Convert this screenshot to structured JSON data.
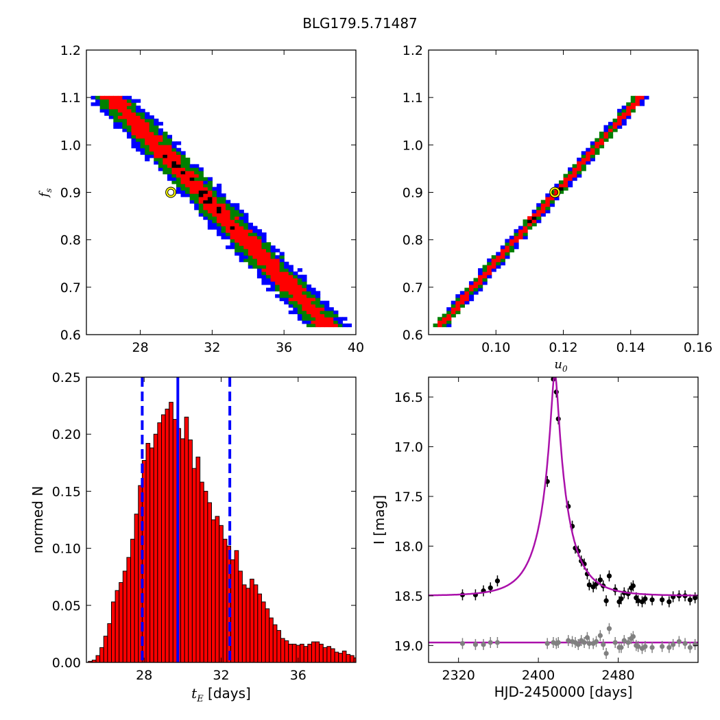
{
  "figure": {
    "title": "BLG179.5.71487"
  },
  "chart_data": [
    {
      "type": "heatmap",
      "panel": "top-left",
      "xlabel": "",
      "ylabel": "f_s",
      "ylabel_display": "f",
      "ylabel_sub": "s",
      "xlim": [
        25,
        40
      ],
      "ylim": [
        0.6,
        1.2
      ],
      "xticks": [
        28,
        32,
        36,
        40
      ],
      "yticks": [
        0.6,
        0.7,
        0.8,
        0.9,
        1.0,
        1.1,
        1.2
      ],
      "ytick_labels": [
        "0.6",
        "0.7",
        "0.8",
        "0.9",
        "1.0",
        "1.1",
        "1.2"
      ],
      "colors": {
        "outer": "#0000ff",
        "middle": "#008000",
        "inner": "#ff0000",
        "core": "#000000"
      },
      "best_fit": {
        "x": 29.7,
        "y": 0.9,
        "marker_color": "#ffff00"
      },
      "band": {
        "fs_range": [
          0.62,
          1.1
        ],
        "x_at_fs_1_1": 26.4,
        "x_at_fs_0_62": 38.4
      }
    },
    {
      "type": "heatmap",
      "panel": "top-right",
      "xlabel": "u_0",
      "xlabel_display": "u",
      "xlabel_sub": "0",
      "ylabel": "",
      "xlim": [
        0.08,
        0.16
      ],
      "ylim": [
        0.6,
        1.2
      ],
      "xticks": [
        0.1,
        0.12,
        0.14,
        0.16
      ],
      "xtick_labels": [
        "0.10",
        "0.12",
        "0.14",
        "0.16"
      ],
      "yticks": [
        0.6,
        0.7,
        0.8,
        0.9,
        1.0,
        1.1,
        1.2
      ],
      "ytick_labels": [
        "0.6",
        "0.7",
        "0.8",
        "0.9",
        "1.0",
        "1.1",
        "1.2"
      ],
      "colors": {
        "outer": "#0000ff",
        "middle": "#008000",
        "inner": "#ff0000",
        "core": "#000000"
      },
      "best_fit": {
        "x": 0.1175,
        "y": 0.9,
        "marker_color": "#ffff00"
      },
      "band": {
        "fs_range": [
          0.62,
          1.1
        ],
        "x_at_fs_0_62": 0.0835,
        "x_at_fs_1_1": 0.1425
      }
    },
    {
      "type": "bar",
      "panel": "bottom-left",
      "xlabel": "t_E [days]",
      "xlabel_italic": "t",
      "xlabel_sub": "E",
      "xlabel_rest": " [days]",
      "ylabel": "normed N",
      "xlim": [
        25,
        39
      ],
      "ylim": [
        0,
        0.25
      ],
      "xticks": [
        28,
        32,
        36
      ],
      "yticks": [
        0,
        0.05,
        0.1,
        0.15,
        0.2,
        0.25
      ],
      "ytick_labels": [
        "0.00",
        "0.05",
        "0.10",
        "0.15",
        "0.20",
        "0.25"
      ],
      "bar_color": "#ff0000",
      "bin_start": 25.1,
      "bin_width": 0.2,
      "values": [
        0.001,
        0.002,
        0.006,
        0.013,
        0.023,
        0.034,
        0.053,
        0.063,
        0.07,
        0.08,
        0.092,
        0.108,
        0.13,
        0.155,
        0.177,
        0.192,
        0.188,
        0.2,
        0.21,
        0.217,
        0.222,
        0.228,
        0.213,
        0.205,
        0.196,
        0.215,
        0.195,
        0.17,
        0.18,
        0.158,
        0.15,
        0.14,
        0.125,
        0.128,
        0.12,
        0.108,
        0.102,
        0.09,
        0.098,
        0.08,
        0.068,
        0.065,
        0.073,
        0.068,
        0.06,
        0.053,
        0.047,
        0.039,
        0.033,
        0.028,
        0.021,
        0.019,
        0.016,
        0.016,
        0.015,
        0.016,
        0.014,
        0.016,
        0.018,
        0.018,
        0.016,
        0.013,
        0.014,
        0.012,
        0.009,
        0.008,
        0.01,
        0.007,
        0.006,
        0.004,
        0.005,
        0.003,
        0.002
      ],
      "vlines": [
        {
          "x": 27.9,
          "style": "dashed",
          "color": "#0000ff"
        },
        {
          "x": 29.75,
          "style": "solid",
          "color": "#0000ff"
        },
        {
          "x": 32.45,
          "style": "dashed",
          "color": "#0000ff"
        }
      ]
    },
    {
      "type": "scatter",
      "panel": "bottom-right",
      "xlabel": "HJD-2450000 [days]",
      "ylabel": "I [mag]",
      "xlim": [
        2290,
        2560
      ],
      "ylim": [
        19.17,
        16.3
      ],
      "y_inverted": true,
      "xticks": [
        2320,
        2400,
        2480
      ],
      "yticks": [
        16.5,
        17.0,
        17.5,
        18.0,
        18.5,
        19.0
      ],
      "ytick_labels": [
        "16.5",
        "17.0",
        "17.5",
        "18.0",
        "18.5",
        "19.0"
      ],
      "model": {
        "color": "#aa10aa",
        "baseline": 18.5,
        "t0": 2416.5,
        "tE": 29.7,
        "u0": 0.1175,
        "fs": 0.9,
        "residual_baseline": 18.97
      },
      "series": [
        {
          "color": "#000000",
          "points": [
            [
              2324,
              18.49
            ],
            [
              2337,
              18.49
            ],
            [
              2345,
              18.45
            ],
            [
              2352,
              18.42
            ],
            [
              2359,
              18.35
            ],
            [
              2409,
              17.35
            ],
            [
              2415,
              16.32
            ],
            [
              2418,
              16.45
            ],
            [
              2420,
              16.72
            ],
            [
              2430,
              17.6
            ],
            [
              2434,
              17.8
            ],
            [
              2437,
              18.02
            ],
            [
              2440,
              18.05
            ],
            [
              2443,
              18.15
            ],
            [
              2446,
              18.18
            ],
            [
              2449,
              18.28
            ],
            [
              2451,
              18.39
            ],
            [
              2455,
              18.41
            ],
            [
              2458,
              18.38
            ],
            [
              2462,
              18.34
            ],
            [
              2465,
              18.4
            ],
            [
              2468,
              18.55
            ],
            [
              2471,
              18.3
            ],
            [
              2477,
              18.44
            ],
            [
              2481,
              18.56
            ],
            [
              2483,
              18.53
            ],
            [
              2486,
              18.47
            ],
            [
              2490,
              18.48
            ],
            [
              2493,
              18.42
            ],
            [
              2495,
              18.4
            ],
            [
              2498,
              18.52
            ],
            [
              2500,
              18.55
            ],
            [
              2504,
              18.56
            ],
            [
              2507,
              18.53
            ],
            [
              2514,
              18.54
            ],
            [
              2524,
              18.54
            ],
            [
              2531,
              18.56
            ],
            [
              2535,
              18.51
            ],
            [
              2541,
              18.5
            ],
            [
              2547,
              18.5
            ],
            [
              2552,
              18.54
            ],
            [
              2557,
              18.52
            ]
          ]
        },
        {
          "color": "#808080",
          "points": [
            [
              2324,
              18.98
            ],
            [
              2337,
              18.99
            ],
            [
              2345,
              18.99
            ],
            [
              2352,
              18.97
            ],
            [
              2359,
              18.97
            ],
            [
              2409,
              18.98
            ],
            [
              2415,
              18.97
            ],
            [
              2418,
              18.98
            ],
            [
              2420,
              18.97
            ],
            [
              2430,
              18.95
            ],
            [
              2434,
              18.96
            ],
            [
              2437,
              18.97
            ],
            [
              2440,
              18.99
            ],
            [
              2443,
              18.95
            ],
            [
              2446,
              18.97
            ],
            [
              2449,
              18.92
            ],
            [
              2451,
              18.98
            ],
            [
              2455,
              18.98
            ],
            [
              2458,
              18.96
            ],
            [
              2462,
              18.9
            ],
            [
              2465,
              18.99
            ],
            [
              2468,
              19.08
            ],
            [
              2471,
              18.83
            ],
            [
              2477,
              18.97
            ],
            [
              2481,
              19.02
            ],
            [
              2483,
              19.02
            ],
            [
              2486,
              18.95
            ],
            [
              2490,
              18.97
            ],
            [
              2493,
              18.93
            ],
            [
              2495,
              18.91
            ],
            [
              2498,
              19.0
            ],
            [
              2500,
              19.01
            ],
            [
              2504,
              19.03
            ],
            [
              2507,
              19.01
            ],
            [
              2514,
              19.02
            ],
            [
              2524,
              19.01
            ],
            [
              2531,
              19.02
            ],
            [
              2535,
              18.99
            ],
            [
              2541,
              18.96
            ],
            [
              2547,
              18.98
            ],
            [
              2552,
              19.02
            ],
            [
              2557,
              18.99
            ]
          ]
        }
      ]
    }
  ]
}
